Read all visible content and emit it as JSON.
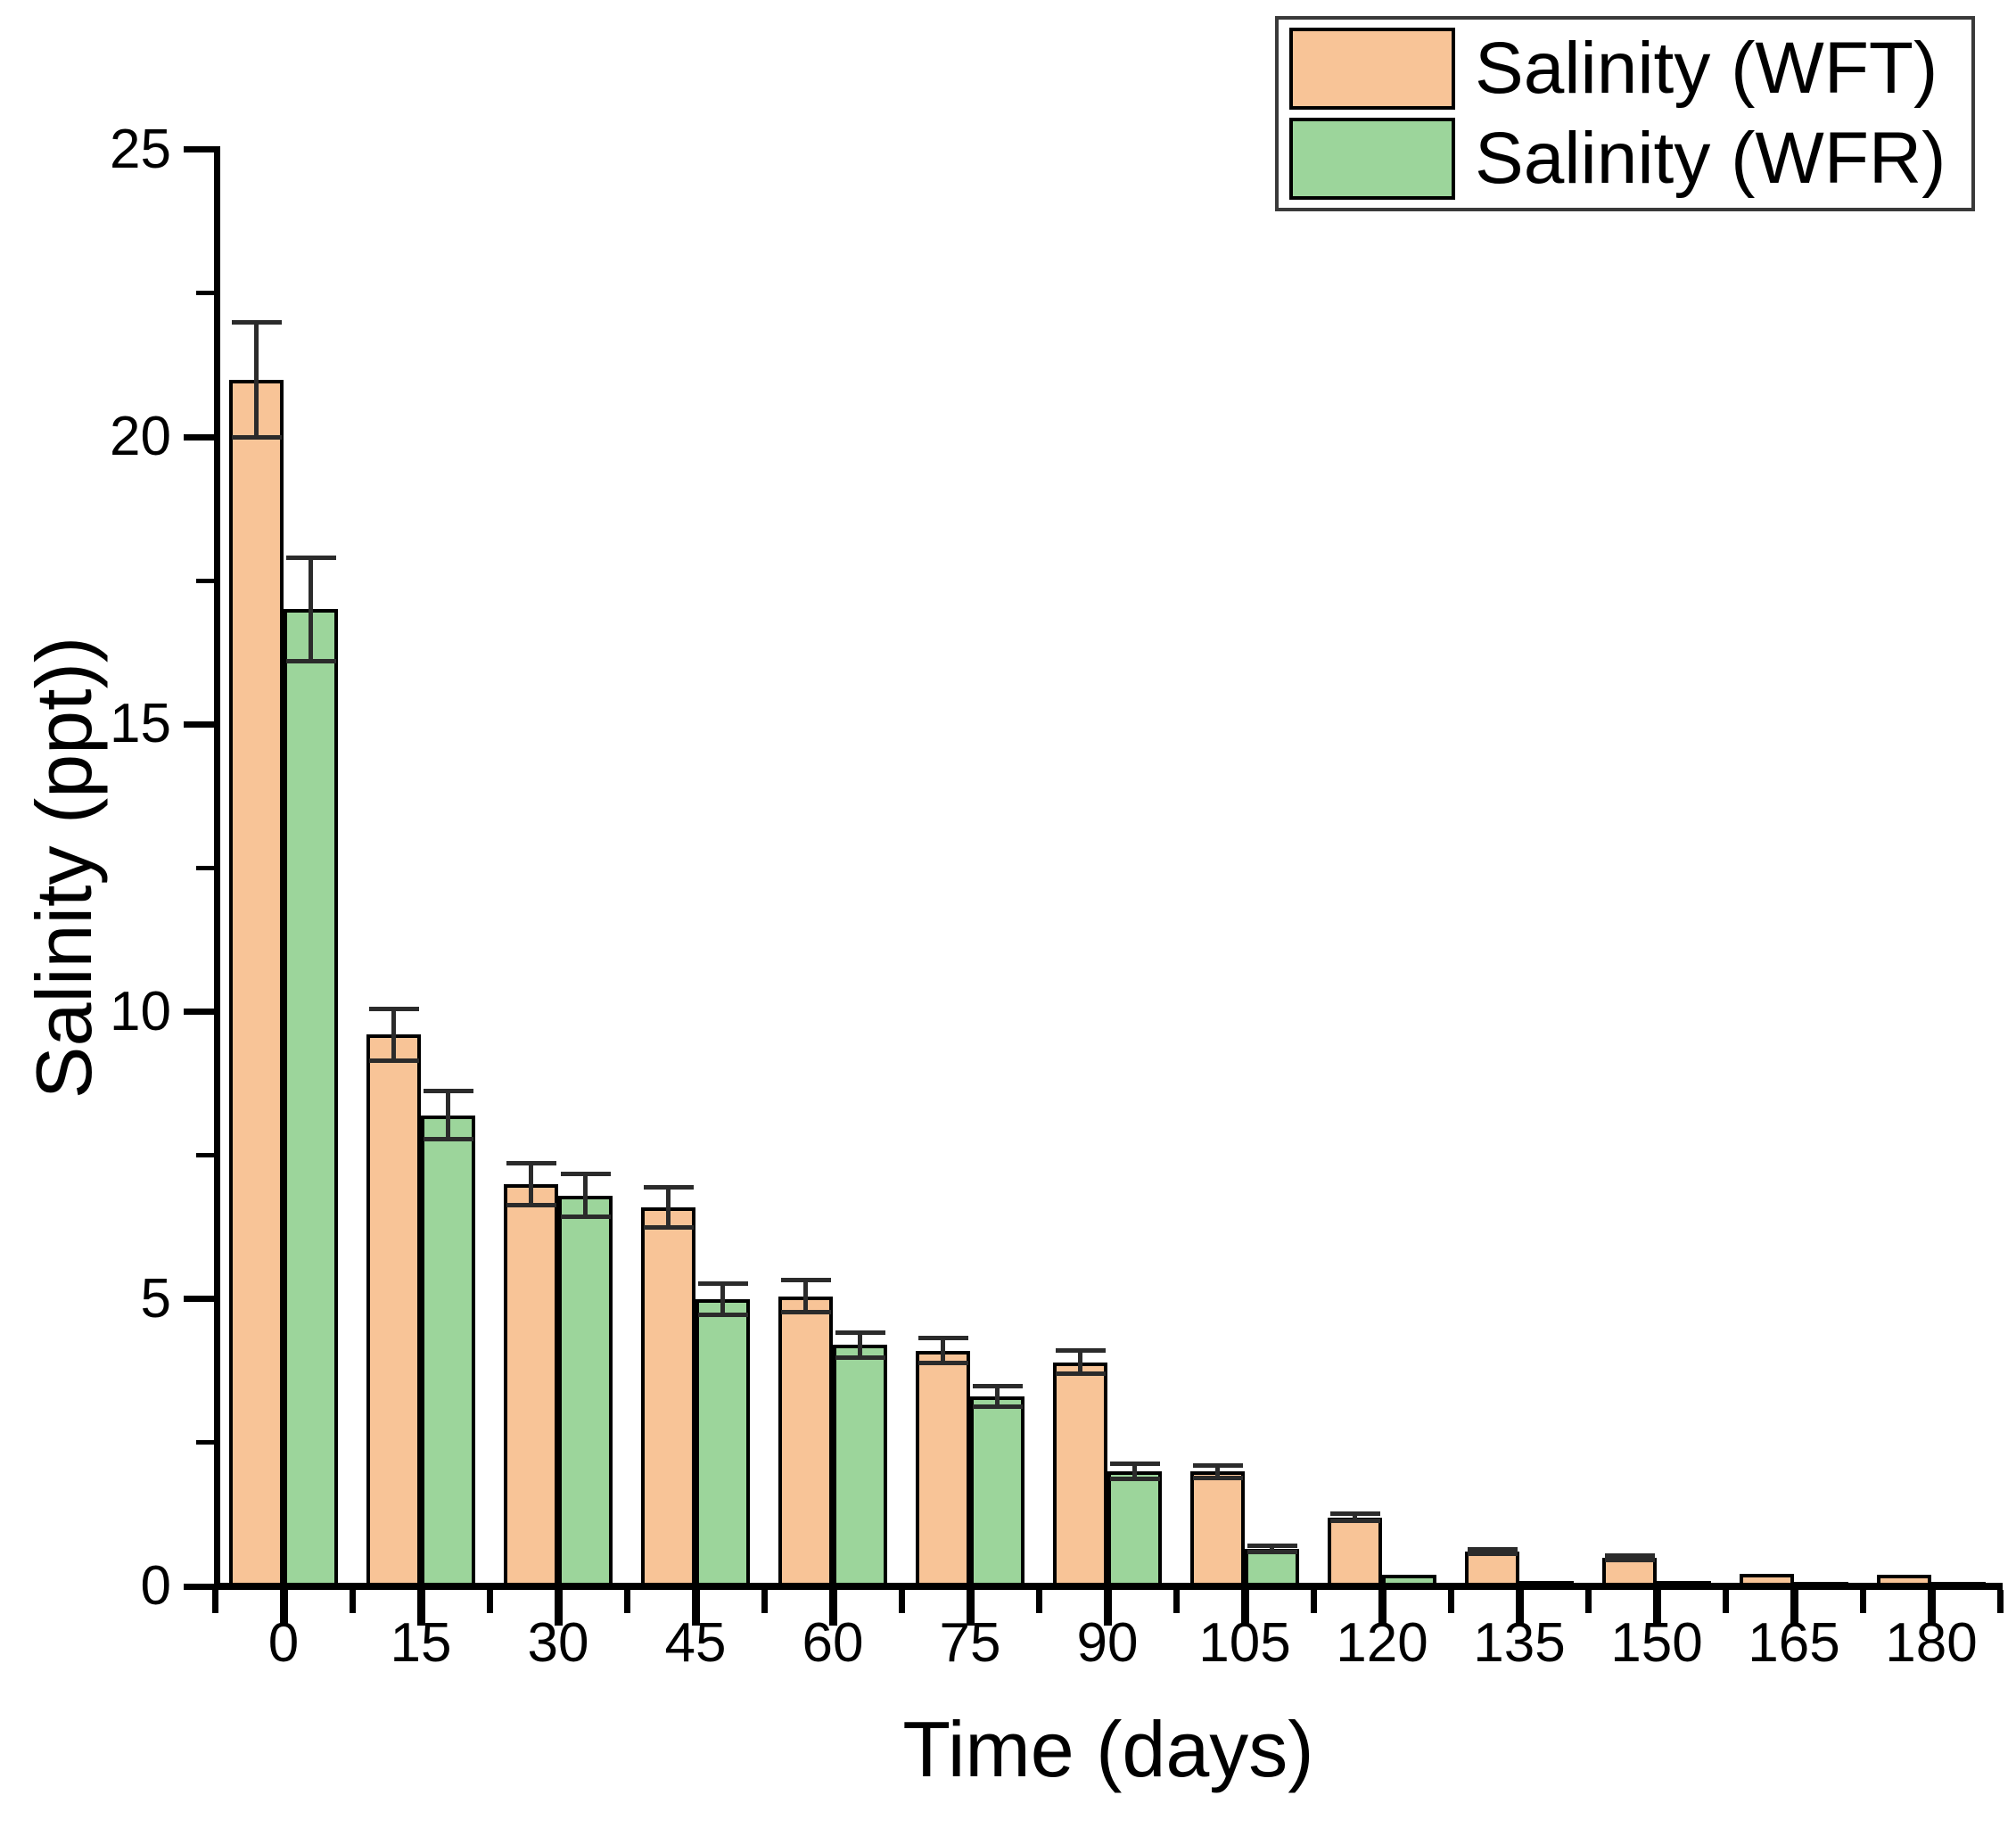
{
  "figure": {
    "background": "#ffffff",
    "text_color": "#000000",
    "axis_color": "#000000",
    "error_bar_color": "#2b2b2b",
    "legend_border_color": "#3a3a3a"
  },
  "chart_data": {
    "type": "bar",
    "title": "",
    "xlabel": "Time (days)",
    "ylabel": "Salinity (ppt))",
    "categories": [
      "0",
      "15",
      "30",
      "45",
      "60",
      "75",
      "90",
      "105",
      "120",
      "135",
      "150",
      "165",
      "180"
    ],
    "series": [
      {
        "name": "Salinity (WFT)",
        "color": "#F8C497",
        "values": [
          21.0,
          9.6,
          7.0,
          6.6,
          5.05,
          4.1,
          3.9,
          2.0,
          1.2,
          0.6,
          0.5,
          0.22,
          0.2
        ],
        "errors": [
          1.0,
          0.45,
          0.37,
          0.35,
          0.28,
          0.22,
          0.2,
          0.11,
          0.06,
          0.04,
          0.04,
          0,
          0
        ]
      },
      {
        "name": "Salinity (WFR)",
        "color": "#9CD59B",
        "values": [
          17.0,
          8.2,
          6.8,
          5.0,
          4.2,
          3.3,
          2.0,
          0.65,
          0.2,
          0.1,
          0.1,
          0.08,
          0.08
        ],
        "errors": [
          0.9,
          0.42,
          0.37,
          0.27,
          0.22,
          0.18,
          0.13,
          0.05,
          0,
          0,
          0,
          0,
          0
        ]
      }
    ],
    "ylim": [
      0,
      25
    ],
    "y_major_ticks": [
      0,
      5,
      10,
      15,
      20,
      25
    ],
    "y_minor_ticks": [
      2.5,
      7.5,
      12.5,
      17.5,
      22.5
    ],
    "grid": "off",
    "legend_position": "top-right",
    "error_bars": "both-caps"
  },
  "legend": {
    "items": [
      {
        "label": "Salinity (WFT)",
        "color": "#F8C497"
      },
      {
        "label": "Salinity (WFR)",
        "color": "#9CD59B"
      }
    ]
  }
}
